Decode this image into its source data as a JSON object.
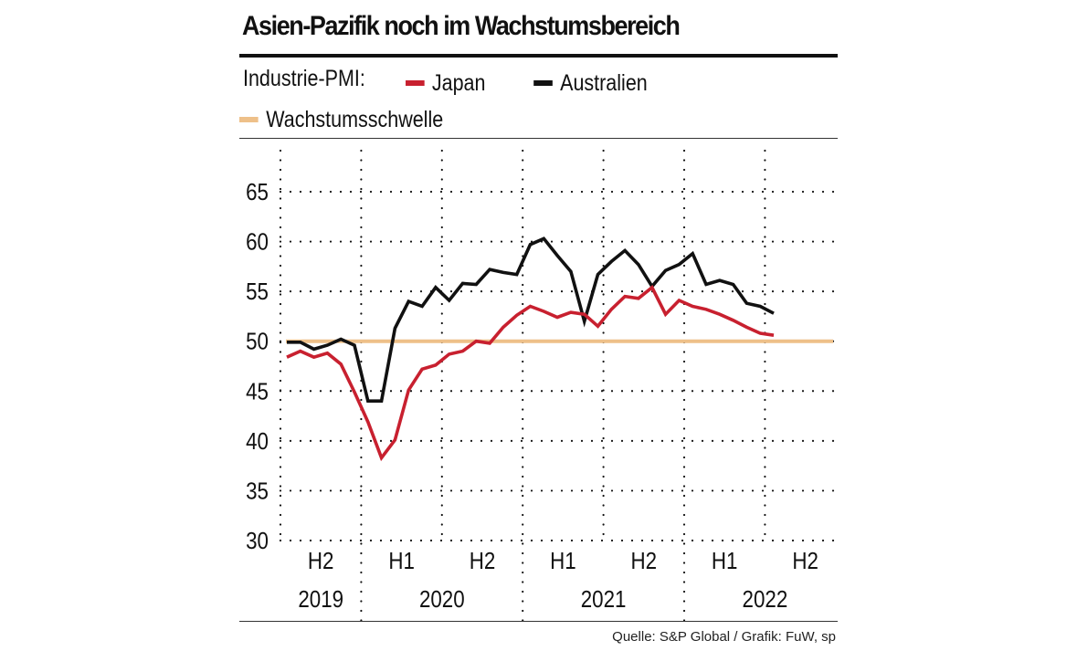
{
  "title": "Asien-Pazifik noch im Wachstumsbereich",
  "legend": {
    "prefix": "Industrie-PMI:",
    "items": [
      {
        "label": "Japan",
        "color": "#c8202f"
      },
      {
        "label": "Australien",
        "color": "#111111"
      },
      {
        "label": "Wachstumsschwelle",
        "color": "#eec089"
      }
    ]
  },
  "source": "Quelle: S&P Global / Grafik: FuW, sp",
  "chart_data": {
    "type": "line",
    "title": "Asien-Pazifik noch im Wachstumsbereich",
    "xlabel": "",
    "ylabel": "Industrie-PMI",
    "ylim": [
      30,
      65
    ],
    "yticks": [
      30,
      35,
      40,
      45,
      50,
      55,
      60,
      65
    ],
    "grid": true,
    "legend_position": "top",
    "x": [
      "2019-07",
      "2019-08",
      "2019-09",
      "2019-10",
      "2019-11",
      "2019-12",
      "2020-01",
      "2020-02",
      "2020-03",
      "2020-04",
      "2020-05",
      "2020-06",
      "2020-07",
      "2020-08",
      "2020-09",
      "2020-10",
      "2020-11",
      "2020-12",
      "2021-01",
      "2021-02",
      "2021-03",
      "2021-04",
      "2021-05",
      "2021-06",
      "2021-07",
      "2021-08",
      "2021-09",
      "2021-10",
      "2021-11",
      "2021-12",
      "2022-01",
      "2022-02",
      "2022-03",
      "2022-04",
      "2022-05",
      "2022-06",
      "2022-07"
    ],
    "half_year_labels": [
      {
        "label": "H2",
        "year": "2019"
      },
      {
        "label": "H1",
        "year": "2020"
      },
      {
        "label": "H2",
        "year": "2020"
      },
      {
        "label": "H1",
        "year": "2021"
      },
      {
        "label": "H2",
        "year": "2021"
      },
      {
        "label": "H1",
        "year": "2022"
      },
      {
        "label": "H2",
        "year": "2022"
      }
    ],
    "year_labels": [
      "2019",
      "2020",
      "2021",
      "2022"
    ],
    "series": [
      {
        "name": "Japan",
        "color": "#c8202f",
        "values": [
          48.4,
          49.0,
          48.4,
          48.8,
          47.7,
          44.9,
          41.9,
          38.3,
          40.1,
          45.1,
          47.2,
          47.6,
          48.7,
          49.0,
          50.0,
          49.8,
          51.4,
          52.6,
          53.5,
          53.0,
          52.4,
          52.9,
          52.7,
          51.5,
          53.2,
          54.5,
          54.3,
          55.4,
          52.7,
          54.1,
          53.5,
          53.2,
          52.7,
          52.1,
          51.4,
          50.8,
          50.6
        ]
      },
      {
        "name": "Australien",
        "color": "#111111",
        "values": [
          49.9,
          49.9,
          49.2,
          49.6,
          50.2,
          49.6,
          44.0,
          44.0,
          51.3,
          54.0,
          53.5,
          55.4,
          54.1,
          55.8,
          55.7,
          57.2,
          56.9,
          56.7,
          59.7,
          60.3,
          58.6,
          57.0,
          52.0,
          56.7,
          58.0,
          59.1,
          57.7,
          55.5,
          57.1,
          57.7,
          58.8,
          55.7,
          56.1,
          55.7,
          53.8,
          53.5,
          52.8
        ]
      }
    ],
    "threshold": {
      "name": "Wachstumsschwelle",
      "value": 50,
      "color": "#eec089"
    }
  }
}
